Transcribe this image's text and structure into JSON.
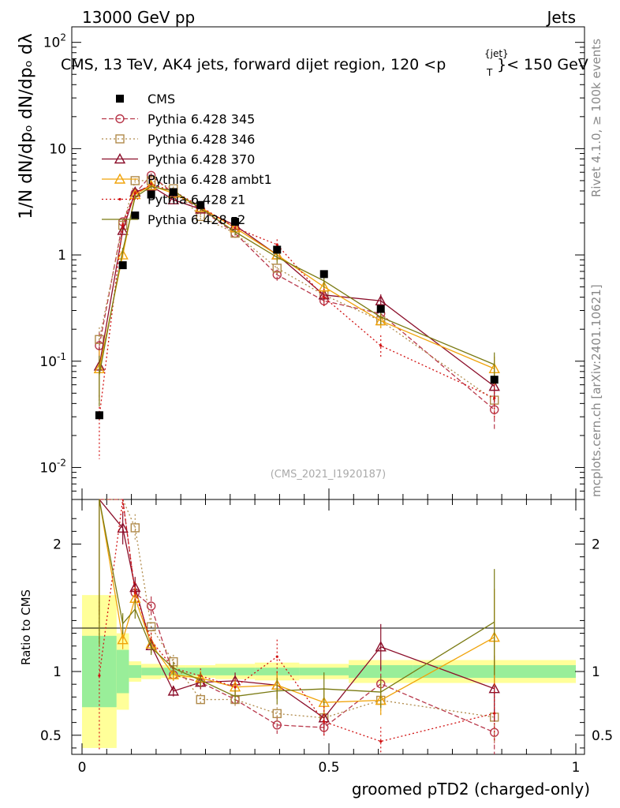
{
  "header": {
    "left": "13000 GeV pp",
    "right": "Jets",
    "title": "CMS, 13 TeV, AK4 jets, forward dijet region, 120 <p",
    "title_sup": "{jet}",
    "title_sub": "T",
    "title_end": "}< 150 GeV"
  },
  "side_labels": {
    "rivet": "Rivet 4.1.0, ≥ 100k events",
    "mcplots": "mcplots.cern.ch [arXiv:2401.10621]"
  },
  "watermark": "(CMS_2021_I1920187)",
  "ylabel_main": "1/N dN/dp_T dN/dp_T dλ",
  "ylabel_ratio": "Ratio to CMS",
  "chart_data": {
    "type": "line",
    "title": "CMS, 13 TeV, AK4 jets, forward dijet region, 120 < pT < 150 GeV",
    "xlabel": "groomed pTD2 (charged-only)",
    "xlim": [
      0,
      1
    ],
    "ylim": [
      0.005,
      140
    ],
    "yscale": "log",
    "ratio_ylim": [
      0.35,
      2.35
    ],
    "x_ticks": [
      "0",
      "0.5",
      "1"
    ],
    "y_ticks": [
      "10^-2",
      "10^-1",
      "1",
      "10",
      "10^2"
    ],
    "ratio_ticks": [
      "0.5",
      "1",
      "2"
    ],
    "bin_edges": [
      0.0,
      0.07,
      0.095,
      0.12,
      0.16,
      0.21,
      0.27,
      0.35,
      0.44,
      0.54,
      0.67,
      1.0
    ],
    "x": [
      0.035,
      0.0825,
      0.1075,
      0.14,
      0.185,
      0.24,
      0.31,
      0.395,
      0.49,
      0.605,
      0.835
    ],
    "data": {
      "name": "CMS",
      "color": "#000000",
      "values": [
        0.031,
        0.8,
        2.35,
        3.7,
        3.9,
        2.95,
        2.05,
        1.12,
        0.66,
        0.31,
        0.067
      ],
      "stat_band": [
        0.28,
        0.17,
        0.05,
        0.03,
        0.03,
        0.03,
        0.03,
        0.03,
        0.03,
        0.05,
        0.05
      ],
      "total_band": [
        0.6,
        0.3,
        0.08,
        0.06,
        0.05,
        0.05,
        0.06,
        0.07,
        0.06,
        0.09,
        0.09
      ]
    },
    "series": [
      {
        "name": "Pythia 6.428 345",
        "color": "#b8374a",
        "marker": "circle",
        "dash": "6,3",
        "values": [
          0.14,
          2.05,
          3.8,
          5.6,
          3.8,
          2.7,
          1.6,
          0.65,
          0.37,
          0.28,
          0.035
        ],
        "errors": [
          0.35,
          0.06,
          0.05,
          0.05,
          0.05,
          0.06,
          0.07,
          0.12,
          0.15,
          0.15,
          0.35
        ]
      },
      {
        "name": "Pythia 6.428 346",
        "color": "#b08a4a",
        "marker": "square",
        "dash": "2,3",
        "values": [
          0.16,
          1.9,
          5.0,
          5.0,
          4.2,
          2.3,
          1.6,
          0.75,
          0.42,
          0.24,
          0.043
        ],
        "errors": [
          0.3,
          0.06,
          0.05,
          0.05,
          0.05,
          0.06,
          0.07,
          0.12,
          0.15,
          0.15,
          0.3
        ]
      },
      {
        "name": "Pythia 6.428 370",
        "color": "#8b0e2a",
        "marker": "triangle",
        "dash": "",
        "values": [
          0.09,
          1.7,
          3.9,
          4.45,
          3.3,
          2.7,
          1.9,
          1.0,
          0.42,
          0.37,
          0.058
        ],
        "errors": [
          0.5,
          0.06,
          0.05,
          0.05,
          0.05,
          0.06,
          0.07,
          0.12,
          0.15,
          0.15,
          0.3
        ]
      },
      {
        "name": "Pythia 6.428 ambt1",
        "color": "#f0a30a",
        "marker": "triangle",
        "dash": "",
        "values": [
          0.085,
          1.0,
          3.7,
          4.5,
          3.8,
          2.8,
          1.8,
          1.0,
          0.5,
          0.24,
          0.085
        ],
        "errors": [
          0.5,
          0.06,
          0.05,
          0.05,
          0.05,
          0.06,
          0.07,
          0.12,
          0.15,
          0.15,
          0.3
        ]
      },
      {
        "name": "Pythia 6.428 z1",
        "color": "#d11111",
        "marker": "dot",
        "dash": "2,3",
        "values": [
          0.03,
          1.9,
          3.8,
          4.6,
          4.0,
          2.85,
          1.8,
          1.25,
          0.4,
          0.14,
          0.045
        ],
        "errors": [
          0.6,
          0.06,
          0.05,
          0.05,
          0.05,
          0.06,
          0.07,
          0.12,
          0.2,
          0.25,
          0.35
        ]
      },
      {
        "name": "Pythia 6.428 z2",
        "color": "#7a7a12",
        "marker": "none",
        "dash": "",
        "values": [
          0.075,
          1.1,
          3.5,
          4.4,
          4.0,
          2.75,
          1.65,
          0.95,
          0.57,
          0.26,
          0.093
        ],
        "errors": [
          0.5,
          0.06,
          0.05,
          0.05,
          0.05,
          0.06,
          0.07,
          0.12,
          0.15,
          0.15,
          0.3
        ]
      }
    ]
  }
}
